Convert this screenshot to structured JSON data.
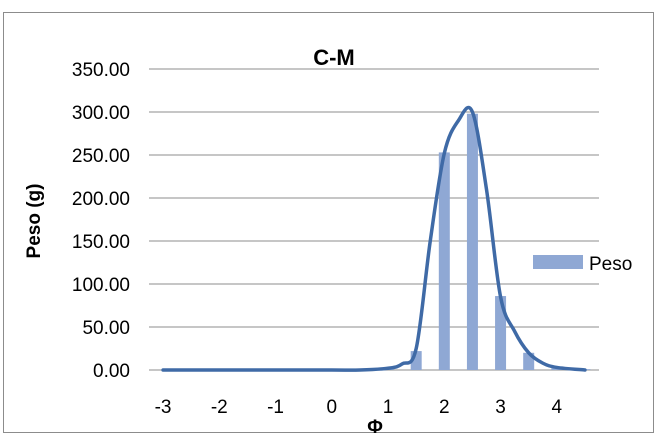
{
  "chart_data": {
    "type": "bar",
    "title": "C-M",
    "xlabel": "Φ",
    "ylabel": "Peso (g)",
    "x_ticks": [
      "-3",
      "-2",
      "-1",
      "0",
      "1",
      "2",
      "3",
      "4"
    ],
    "y_ticks": [
      "0.00",
      "50.00",
      "100.00",
      "150.00",
      "200.00",
      "250.00",
      "300.00",
      "350.00"
    ],
    "ylim": [
      0,
      350
    ],
    "xlim": [
      -3.25,
      4.75
    ],
    "grid": "horizontal",
    "legend": {
      "position": "right",
      "entries": [
        "Peso"
      ]
    },
    "colors": {
      "bars": "#8fa8d4",
      "curve": "#3f6aa6",
      "grid": "#8c8c8c"
    },
    "series": [
      {
        "name": "Peso",
        "type": "bar",
        "x": [
          -3,
          -2.5,
          -2,
          -1.5,
          -1,
          -0.5,
          0,
          0.5,
          1,
          1.5,
          2,
          2.5,
          3,
          3.5,
          4,
          4.5
        ],
        "values": [
          0,
          0,
          0,
          0,
          0,
          0,
          1,
          1,
          2,
          22,
          253,
          298,
          86,
          20,
          2,
          1
        ]
      },
      {
        "type": "line",
        "smooth": true,
        "x": [
          -3,
          -2,
          -1,
          0,
          0.5,
          1,
          1.25,
          1.5,
          1.75,
          2,
          2.25,
          2.5,
          2.75,
          3,
          3.25,
          3.5,
          3.75,
          4,
          4.5
        ],
        "values": [
          0,
          0,
          0,
          0,
          0,
          2,
          7,
          25,
          150,
          252,
          290,
          300,
          210,
          85,
          45,
          20,
          8,
          3,
          0
        ]
      }
    ]
  }
}
